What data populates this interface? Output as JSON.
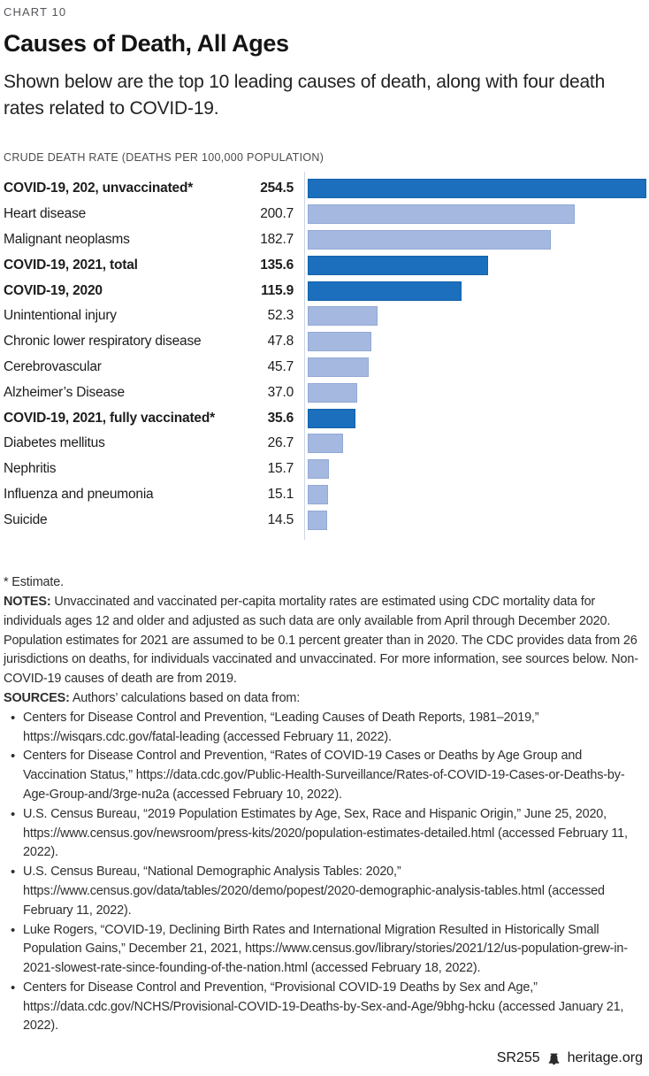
{
  "page": {
    "eyebrow": "CHART 10",
    "title": "Causes of Death, All Ages",
    "subtitle": "Shown below are the top 10 leading causes of death, along with four death rates related to COVID-19.",
    "axis_label": "CRUDE DEATH RATE (DEATHS PER 100,000 POPULATION)"
  },
  "chart_data": {
    "type": "bar",
    "orientation": "horizontal",
    "title": "Causes of Death, All Ages",
    "xlabel": "CRUDE DEATH RATE (DEATHS PER 100,000 POPULATION)",
    "xlim": [
      0,
      254.5
    ],
    "grid": false,
    "legend": "none",
    "categories": [
      "COVID-19, 202, unvaccinated*",
      "Heart disease",
      "Malignant neoplasms",
      "COVID-19, 2021, total",
      "COVID-19, 2020",
      "Unintentional injury",
      "Chronic lower respiratory disease",
      "Cerebrovascular",
      "Alzheimer’s Disease",
      "COVID-19, 2021, fully vaccinated*",
      "Diabetes mellitus",
      "Nephritis",
      "Influenza and pneumonia",
      "Suicide"
    ],
    "values": [
      254.5,
      200.7,
      182.7,
      135.6,
      115.9,
      52.3,
      47.8,
      45.7,
      37.0,
      35.6,
      26.7,
      15.7,
      15.1,
      14.5
    ],
    "emphasis": [
      true,
      false,
      false,
      true,
      true,
      false,
      false,
      false,
      false,
      true,
      false,
      false,
      false,
      false
    ],
    "colors": {
      "covid_bar": "#1b6fbd",
      "covid_bar_border": "#1563a9",
      "default_bar": "#a5b8e0",
      "default_bar_border": "#93a9d6",
      "axis_line": "#ccd5e6"
    }
  },
  "notes": {
    "estimate_note": "* Estimate.",
    "notes_label": "NOTES:",
    "notes_text": "Unvaccinated and vaccinated per-capita mortality rates are estimated using CDC mortality data for individuals ages 12 and older and adjusted as such data are only available from April through December 2020. Population estimates for 2021 are assumed to be 0.1 percent greater than in 2020. The CDC provides data from 26 jurisdictions on deaths, for individuals vaccinated and unvaccinated. For more information, see sources below. Non-COVID-19 causes of death are from 2019.",
    "sources_label": "SOURCES:",
    "sources_intro": "Authors’ calculations based on data from:",
    "sources": [
      "Centers for Disease Control and Prevention, “Leading Causes of Death Reports, 1981–2019,” https://wisqars.cdc.gov/fatal-leading (accessed February 11, 2022).",
      "Centers for Disease Control and Prevention, “Rates of COVID-19 Cases or Deaths by Age Group and Vaccination Status,” https://data.cdc.gov/Public-Health-Surveillance/Rates-of-COVID-19-Cases-or-Deaths-by-Age-Group-and/3rge-nu2a (accessed February 10, 2022).",
      "U.S. Census Bureau, “2019 Population Estimates by Age, Sex, Race and Hispanic Origin,” June 25, 2020, https://www.census.gov/newsroom/press-kits/2020/population-estimates-detailed.html (accessed February 11, 2022).",
      "U.S. Census Bureau, “National Demographic Analysis Tables: 2020,” https://www.census.gov/data/tables/2020/demo/popest/2020-demographic-analysis-tables.html (accessed February 11, 2022).",
      "Luke Rogers, “COVID-19, Declining Birth Rates and International Migration Resulted in Historically Small Population Gains,” December 21, 2021, https://www.census.gov/library/stories/2021/12/us-population-grew-in-2021-slowest-rate-since-founding-of-the-nation.html (accessed February 18, 2022).",
      "Centers for Disease Control and Prevention, “Provisional COVID-19 Deaths by Sex and Age,” https://data.cdc.gov/NCHS/Provisional-COVID-19-Deaths-by-Sex-and-Age/9bhg-hcku (accessed January 21, 2022)."
    ]
  },
  "footer": {
    "report_id": "SR255",
    "site": "heritage.org",
    "icon": "liberty-bell-icon"
  }
}
